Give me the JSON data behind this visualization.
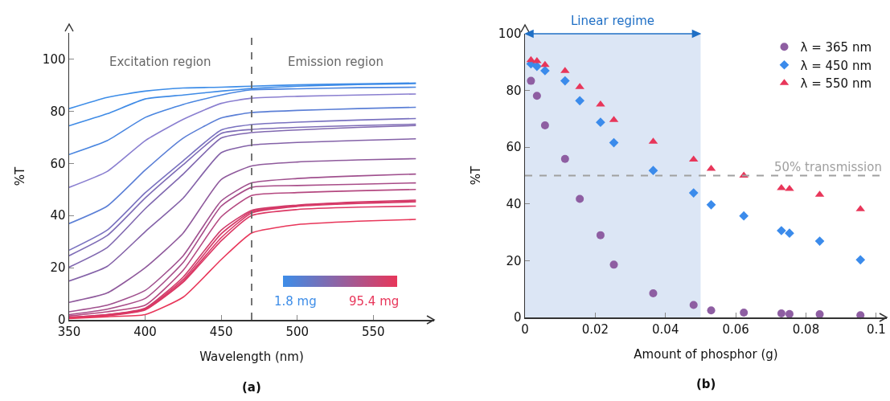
{
  "chart_data": [
    {
      "type": "line",
      "xlabel": "Wavelength (nm)",
      "ylabel": "%T",
      "x": [
        350,
        375,
        400,
        425,
        450,
        470,
        500,
        540,
        578
      ],
      "series": [
        {
          "name": "1.8 mg",
          "color": "#3d8de8",
          "values": [
            81,
            85.3,
            87.7,
            88.9,
            89.2,
            89.6,
            90.1,
            90.5,
            90.8
          ]
        },
        {
          "color": "#3f8be6",
          "values": [
            74.4,
            79,
            84.7,
            86.2,
            87.7,
            88.7,
            89.6,
            90.2,
            90.6
          ]
        },
        {
          "color": "#4a86e0",
          "values": [
            63.4,
            68.7,
            77.6,
            82.6,
            86.2,
            88.2,
            88.6,
            89,
            89.2
          ]
        },
        {
          "color": "#8a7fd0",
          "values": [
            50.8,
            56.9,
            68.7,
            76.9,
            83,
            85,
            85.7,
            86.2,
            86.6
          ]
        },
        {
          "color": "#5b7fd6",
          "values": [
            36.9,
            43.6,
            57.4,
            69.7,
            77.4,
            79.5,
            80.3,
            81,
            81.5
          ]
        },
        {
          "color": "#7a72c0",
          "values": [
            26.7,
            34.4,
            48.7,
            61,
            72.8,
            74.9,
            75.8,
            76.6,
            77.2
          ]
        },
        {
          "color": "#7e6cb6",
          "values": [
            24.6,
            32.3,
            46.7,
            59.5,
            71.5,
            73,
            73.8,
            74.5,
            75
          ]
        },
        {
          "color": "#8068b0",
          "values": [
            20.2,
            27.7,
            42.6,
            55.9,
            69.7,
            71.8,
            72.8,
            73.8,
            74.5
          ]
        },
        {
          "color": "#8462a8",
          "values": [
            14.9,
            20.5,
            33.8,
            46.7,
            64.1,
            67,
            68,
            68.8,
            69.4
          ]
        },
        {
          "color": "#8f5a9c",
          "values": [
            6.7,
            10.3,
            20,
            33.3,
            53.8,
            59,
            60.5,
            61.3,
            61.8
          ]
        },
        {
          "color": "#a0508e",
          "values": [
            3.1,
            5.6,
            11.3,
            24.6,
            45.6,
            52.5,
            54.2,
            55.2,
            55.9
          ]
        },
        {
          "color": "#a84c88",
          "values": [
            2,
            4.1,
            8.2,
            22,
            43.6,
            50.8,
            51.5,
            52,
            52.5
          ]
        },
        {
          "color": "#b44880",
          "values": [
            1.5,
            3.1,
            5.6,
            19,
            39.5,
            47.7,
            48.8,
            49.5,
            50
          ]
        },
        {
          "color": "#d03c6a",
          "values": [
            1,
            2,
            4.5,
            16.4,
            34.4,
            42,
            44,
            45.2,
            45.9
          ]
        },
        {
          "color": "#d43a68",
          "values": [
            1,
            2,
            4.2,
            15.5,
            33,
            41.5,
            43.8,
            45,
            45.6
          ]
        },
        {
          "color": "#d83866",
          "values": [
            0.8,
            1.8,
            4,
            14.8,
            31.5,
            41,
            43.5,
            44.6,
            45.2
          ]
        },
        {
          "color": "#dc3864",
          "values": [
            0.8,
            1.6,
            3.8,
            14.4,
            30.3,
            40,
            42.3,
            43.2,
            43.6
          ]
        },
        {
          "name": "95.4 mg",
          "color": "#e8365a",
          "values": [
            0.5,
            1.2,
            2,
            8.7,
            23.1,
            33.3,
            36.5,
            37.8,
            38.5
          ]
        }
      ],
      "xlim": [
        350,
        590
      ],
      "ylim": [
        0,
        110
      ],
      "xticks": [
        350,
        400,
        450,
        500,
        550
      ],
      "yticks": [
        0,
        20,
        40,
        60,
        80,
        100
      ],
      "grid": false,
      "legend": false,
      "ref_lines": [
        {
          "axis": "x",
          "value": 470,
          "color": "#666666",
          "line_style": "dashed"
        }
      ],
      "annotations": [
        "Excitation region",
        "Emission region",
        "(a)"
      ]
    },
    {
      "type": "scatter",
      "xlabel": "Amount of phosphor (g)",
      "ylabel": "%T",
      "x": [
        0.0017,
        0.0034,
        0.0057,
        0.0114,
        0.0156,
        0.0215,
        0.0253,
        0.0365,
        0.048,
        0.053,
        0.0623,
        0.073,
        0.0753,
        0.0839,
        0.0955
      ],
      "series": [
        {
          "name": "λ = 365 nm",
          "color": "#8e5ea2",
          "marker": "circle",
          "values": [
            83.4,
            78.1,
            67.7,
            55.9,
            41.8,
            29,
            18.6,
            8.5,
            4.4,
            2.5,
            1.7,
            1.4,
            1.2,
            1.1,
            0.8
          ]
        },
        {
          "name": "λ = 450 nm",
          "color": "#3b8beb",
          "marker": "diamond",
          "values": [
            89.4,
            88.5,
            87,
            83.4,
            76.4,
            68.8,
            61.6,
            51.8,
            43.9,
            39.7,
            35.8,
            30.6,
            29.7,
            26.9,
            20.3
          ]
        },
        {
          "name": "λ = 550 nm",
          "color": "#e8365a",
          "marker": "triangle",
          "values": [
            90.7,
            90.4,
            89,
            86.9,
            81.2,
            75.1,
            69.6,
            62,
            55.7,
            52.4,
            50,
            45.6,
            45.3,
            43.3,
            38.2
          ]
        }
      ],
      "xlim": [
        0,
        0.103
      ],
      "ylim": [
        0,
        100
      ],
      "xticks": [
        0,
        0.02,
        0.04,
        0.06,
        0.08,
        0.1
      ],
      "yticks": [
        0,
        20,
        40,
        60,
        80,
        100
      ],
      "grid": false,
      "legend": "top right",
      "ref_lines": [
        {
          "axis": "y",
          "value": 50,
          "label": "50% transmission",
          "color": "#a0a0a0",
          "line_style": "dashed"
        }
      ],
      "bands": [
        {
          "axis": "x",
          "from": 0,
          "to": 0.05,
          "label": "Linear regime",
          "color": "#dce6f5"
        }
      ],
      "annotations": [
        "(b)"
      ]
    }
  ]
}
